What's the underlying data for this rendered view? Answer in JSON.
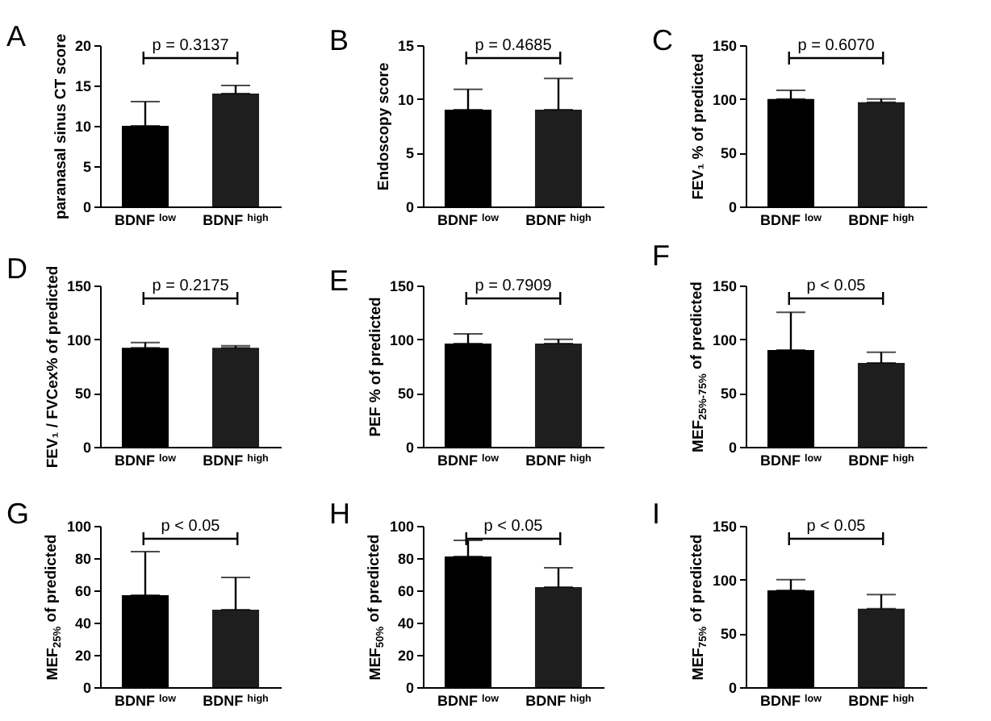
{
  "chart_data": [
    {
      "type": "bar",
      "title": "A",
      "ylabel": "paranasal sinus CT score",
      "categories": [
        "BDNF $^{low}$",
        "BDNF $^{high}$"
      ],
      "values": [
        10,
        14
      ],
      "errors": [
        [
          10,
          13
        ],
        [
          14,
          15
        ]
      ],
      "colors": [
        "#000000",
        "#1e1e1e"
      ],
      "ylim": [
        0,
        20
      ],
      "yticks": [
        0,
        5,
        10,
        15,
        20
      ],
      "annotations": [
        "p = 0.3137"
      ]
    },
    {
      "type": "bar",
      "title": "B",
      "ylabel": "Endoscopy score",
      "categories": [
        "BDNF $^{low}$",
        "BDNF $^{high}$"
      ],
      "values": [
        9,
        9
      ],
      "errors": [
        [
          9,
          10.9
        ],
        [
          9,
          11.9
        ]
      ],
      "colors": [
        "#000000",
        "#1e1e1e"
      ],
      "ylim": [
        0,
        15
      ],
      "yticks": [
        0,
        5,
        10,
        15
      ],
      "annotations": [
        "p = 0.4685"
      ]
    },
    {
      "type": "bar",
      "title": "C",
      "ylabel": "FEV₁ % of predicted",
      "categories": [
        "BDNF $^{low}$",
        "BDNF $^{high}$"
      ],
      "values": [
        100,
        97
      ],
      "errors": [
        [
          100,
          108
        ],
        [
          97,
          100
        ]
      ],
      "colors": [
        "#000000",
        "#1e1e1e"
      ],
      "ylim": [
        0,
        150
      ],
      "yticks": [
        0,
        50,
        100,
        150
      ],
      "annotations": [
        "p = 0.6070"
      ]
    },
    {
      "type": "bar",
      "title": "D",
      "ylabel": "FEV₁ / FVCex% of predicted",
      "categories": [
        "BDNF $^{low}$",
        "BDNF $^{high}$"
      ],
      "values": [
        92,
        92
      ],
      "errors": [
        [
          92,
          97
        ],
        [
          92,
          94
        ]
      ],
      "colors": [
        "#000000",
        "#1e1e1e"
      ],
      "ylim": [
        0,
        150
      ],
      "yticks": [
        0,
        50,
        100,
        150
      ],
      "annotations": [
        "p = 0.2175"
      ]
    },
    {
      "type": "bar",
      "title": "E",
      "ylabel": "PEF % of predicted",
      "categories": [
        "BDNF $^{low}$",
        "BDNF $^{high}$"
      ],
      "values": [
        96,
        96
      ],
      "errors": [
        [
          96,
          105
        ],
        [
          96,
          100
        ]
      ],
      "colors": [
        "#000000",
        "#1e1e1e"
      ],
      "ylim": [
        0,
        150
      ],
      "yticks": [
        0,
        50,
        100,
        150
      ],
      "annotations": [
        "p = 0.7909"
      ]
    },
    {
      "type": "bar",
      "title": "F",
      "ylabel": "MEF$_{25%-75%}$ of predicted",
      "categories": [
        "BDNF $^{low}$",
        "BDNF $^{high}$"
      ],
      "values": [
        90,
        78
      ],
      "errors": [
        [
          90,
          125
        ],
        [
          78,
          88
        ]
      ],
      "colors": [
        "#000000",
        "#1e1e1e"
      ],
      "ylim": [
        0,
        150
      ],
      "yticks": [
        0,
        50,
        100,
        150
      ],
      "annotations": [
        "p < 0.05"
      ]
    },
    {
      "type": "bar",
      "title": "G",
      "ylabel": "MEF$_{25%}$ of predicted",
      "categories": [
        "BDNF $^{low}$",
        "BDNF $^{high}$"
      ],
      "values": [
        57,
        48
      ],
      "errors": [
        [
          57,
          84
        ],
        [
          48,
          68
        ]
      ],
      "colors": [
        "#000000",
        "#1e1e1e"
      ],
      "ylim": [
        0,
        100
      ],
      "yticks": [
        0,
        20,
        40,
        60,
        80,
        100
      ],
      "annotations": [
        "p < 0.05"
      ]
    },
    {
      "type": "bar",
      "title": "H",
      "ylabel": "MEF$_{50%}$ of predicted",
      "categories": [
        "BDNF $^{low}$",
        "BDNF $^{high}$"
      ],
      "values": [
        81,
        62
      ],
      "errors": [
        [
          81,
          91
        ],
        [
          62,
          74
        ]
      ],
      "colors": [
        "#000000",
        "#1e1e1e"
      ],
      "ylim": [
        0,
        100
      ],
      "yticks": [
        0,
        20,
        40,
        60,
        80,
        100
      ],
      "annotations": [
        "p < 0.05"
      ]
    },
    {
      "type": "bar",
      "title": "I",
      "ylabel": "MEF$_{75%}$ of predicted",
      "categories": [
        "BDNF $^{low}$",
        "BDNF $^{high}$"
      ],
      "values": [
        90,
        73
      ],
      "errors": [
        [
          90,
          100
        ],
        [
          73,
          86
        ]
      ],
      "colors": [
        "#000000",
        "#1e1e1e"
      ],
      "ylim": [
        0,
        150
      ],
      "yticks": [
        0,
        50,
        100,
        150
      ],
      "annotations": [
        "p < 0.05"
      ]
    }
  ]
}
